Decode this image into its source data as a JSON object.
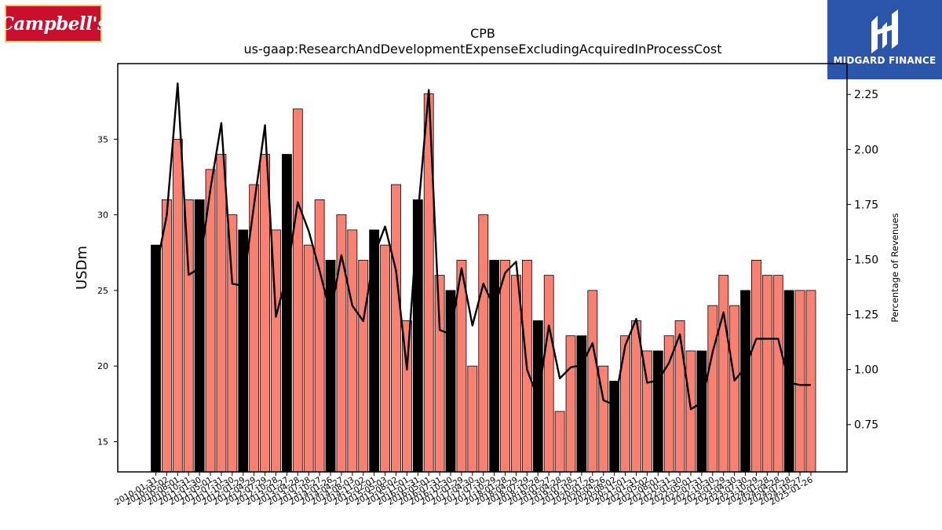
{
  "header": {
    "brand_logo_text": "Campbell's",
    "watermark_text": "MIDGARD FINANCE"
  },
  "chart_data": {
    "type": "bar",
    "title": "CPB",
    "subtitle": "us-gaap:ResearchAndDevelopmentExpenseExcludingAcquiredInProcessCost",
    "ylabel": "USDm",
    "y2label": "Percentage of Revenues",
    "ylim": [
      13,
      40
    ],
    "y2lim": [
      0.535,
      2.39
    ],
    "yticks": [
      15,
      20,
      25,
      30,
      35
    ],
    "y2ticks": [
      0.75,
      1.0,
      1.25,
      1.5,
      1.75,
      2.0,
      2.25
    ],
    "y2tick_labels": [
      "0.75",
      "1.00",
      "1.25",
      "1.50",
      "1.75",
      "2.00",
      "2.25"
    ],
    "grid": false,
    "categories": [
      "2010-01-31",
      "2010-05-02",
      "2010-08-01",
      "2010-10-31",
      "2011-01-30",
      "2011-05-01",
      "2011-07-31",
      "2011-10-30",
      "2012-01-29",
      "2012-04-29",
      "2012-07-29",
      "2012-10-28",
      "2013-01-27",
      "2013-04-28",
      "2013-07-28",
      "2013-10-27",
      "2014-01-26",
      "2014-04-27",
      "2014-08-03",
      "2014-11-02",
      "2015-02-01",
      "2015-05-03",
      "2015-08-02",
      "2015-11-01",
      "2016-01-31",
      "2016-05-01",
      "2016-07-31",
      "2016-10-30",
      "2017-01-29",
      "2017-04-30",
      "2017-07-30",
      "2017-10-29",
      "2018-01-28",
      "2018-04-29",
      "2018-07-29",
      "2018-10-28",
      "2019-01-27",
      "2019-04-28",
      "2019-07-28",
      "2019-10-27",
      "2020-01-26",
      "2020-04-26",
      "2020-08-02",
      "2020-11-01",
      "2021-01-31",
      "2021-05-02",
      "2021-08-01",
      "2021-10-31",
      "2022-01-30",
      "2022-05-01",
      "2022-07-31",
      "2022-10-30",
      "2023-01-29",
      "2023-04-30",
      "2023-07-30",
      "2023-10-29",
      "2024-01-28",
      "2024-04-28",
      "2024-07-28",
      "2024-10-27",
      "2025-01-26"
    ],
    "xtick_labels": [
      "2010-01-31",
      "2010-05-02",
      "2010-08-01",
      "2010-10-31",
      "2011-01-30",
      "2011-05-01",
      "2011-07-31",
      "2011-10-30",
      "2012-01-29",
      "2012-04-29",
      "2012-07-29",
      "2012-10-28",
      "2013-01-27",
      "2013-04-28",
      "2013-07-28",
      "2013-10-27",
      "2014-01-26",
      "2014-04-27",
      "2014-08-03",
      "2014-11-02",
      "2015-02-01",
      "2015-05-03",
      "2015-08-02",
      "2015-11-01",
      "2016-01-31",
      "2016-05-01",
      "2016-07-31",
      "2016-10-30",
      "2017-01-29",
      "2017-04-30",
      "2017-07-30",
      "2017-10-29",
      "2018-01-28",
      "2018-04-29",
      "2018-07-29",
      "2018-10-28",
      "2019-01-27",
      "2019-04-28",
      "2019-07-28",
      "2019-10-27",
      "2020-01-26",
      "2020-04-26",
      "2020-08-02",
      "2020-11-01",
      "2021-01-31",
      "2021-05-02",
      "2021-08-01",
      "2021-10-31",
      "2022-01-30",
      "2022-05-01",
      "2022-07-31",
      "2022-10-30",
      "2023-01-29",
      "2023-04-30",
      "2023-07-30",
      "2023-10-29",
      "2024-01-28",
      "2024-04-28",
      "2024-07-28",
      "2024-10-27",
      "2025-01-26"
    ],
    "series": [
      {
        "type": "bar",
        "axis": "left",
        "values": [
          28,
          31,
          35,
          31,
          31,
          33,
          34,
          30,
          29,
          32,
          34,
          29,
          34,
          37,
          28,
          31,
          27,
          30,
          29,
          27,
          29,
          28,
          32,
          23,
          31,
          38,
          26,
          25,
          27,
          20,
          30,
          27,
          27,
          26,
          27,
          23,
          26,
          17,
          22,
          22,
          25,
          20,
          19,
          22,
          23,
          21,
          21,
          22,
          23,
          21,
          21,
          24,
          26,
          24,
          25,
          27,
          26,
          26,
          25,
          25,
          25
        ],
        "highlight": [
          true,
          false,
          false,
          false,
          true,
          false,
          false,
          false,
          true,
          false,
          false,
          false,
          true,
          false,
          false,
          false,
          true,
          false,
          false,
          false,
          true,
          false,
          false,
          false,
          true,
          false,
          false,
          true,
          false,
          false,
          false,
          true,
          false,
          false,
          false,
          true,
          false,
          false,
          false,
          true,
          false,
          false,
          true,
          false,
          false,
          false,
          true,
          false,
          false,
          false,
          true,
          false,
          false,
          false,
          true,
          false,
          false,
          false,
          true,
          false,
          false
        ],
        "color": "#fa8072",
        "highlight_color": "#000000"
      },
      {
        "type": "line",
        "axis": "right",
        "values": [
          1.45,
          1.7,
          2.3,
          1.43,
          1.46,
          1.82,
          2.12,
          1.39,
          1.38,
          1.75,
          2.11,
          1.24,
          1.43,
          1.76,
          1.63,
          1.45,
          1.25,
          1.52,
          1.29,
          1.22,
          1.52,
          1.65,
          1.45,
          1.0,
          1.7,
          2.27,
          1.18,
          1.16,
          1.46,
          1.2,
          1.39,
          1.28,
          1.44,
          1.49,
          1.0,
          0.87,
          1.2,
          0.96,
          1.01,
          1.02,
          1.12,
          0.86,
          0.84,
          1.11,
          1.23,
          0.94,
          0.95,
          1.03,
          1.16,
          0.82,
          0.85,
          1.08,
          1.26,
          0.95,
          1.01,
          1.14,
          1.14,
          1.14,
          0.94,
          0.93,
          0.93
        ],
        "color": "#000000"
      }
    ]
  }
}
